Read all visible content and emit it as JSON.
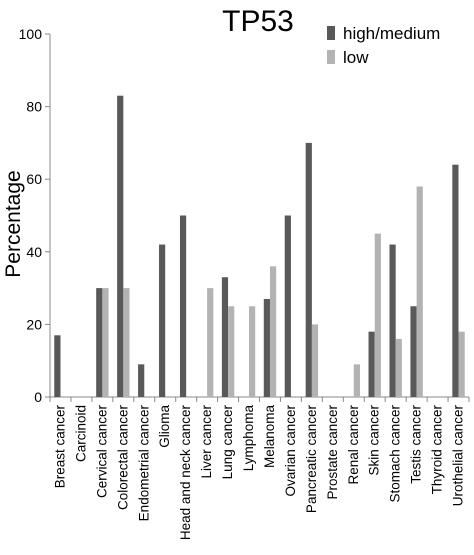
{
  "chart_data": {
    "type": "bar",
    "title": "TP53",
    "xlabel": "",
    "ylabel": "Percentage",
    "ylim": [
      0,
      100
    ],
    "yticks": [
      0,
      20,
      40,
      60,
      80,
      100
    ],
    "grid": false,
    "legend_position": "top-right",
    "categories": [
      "Breast cancer",
      "Carcinoid",
      "Cervical cancer",
      "Colorectal cancer",
      "Endometrial cancer",
      "Glioma",
      "Head and neck cancer",
      "Liver cancer",
      "Lung cancer",
      "Lymphoma",
      "Melanoma",
      "Ovarian cancer",
      "Pancreatic cancer",
      "Prostate cancer",
      "Renal cancer",
      "Skin cancer",
      "Stomach cancer",
      "Testis cancer",
      "Thyroid cancer",
      "Urothelial cancer"
    ],
    "series": [
      {
        "name": "high/medium",
        "color": "#595959",
        "values": [
          17,
          0,
          30,
          83,
          9,
          42,
          50,
          0,
          33,
          0,
          27,
          50,
          70,
          0,
          0,
          18,
          42,
          25,
          0,
          64
        ]
      },
      {
        "name": "low",
        "color": "#b3b3b3",
        "values": [
          0,
          0,
          30,
          30,
          0,
          0,
          0,
          30,
          25,
          25,
          36,
          0,
          20,
          0,
          9,
          45,
          16,
          58,
          0,
          18
        ]
      }
    ]
  }
}
